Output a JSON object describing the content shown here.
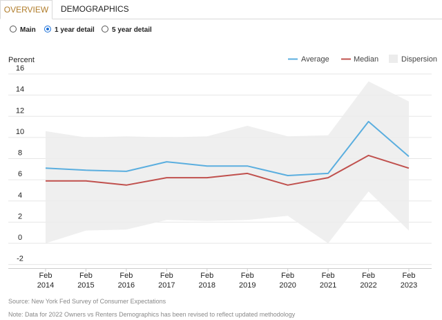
{
  "tabs": [
    {
      "label": "OVERVIEW"
    },
    {
      "label": "DEMOGRAPHICS"
    }
  ],
  "options": [
    {
      "label": "Main",
      "selected": false
    },
    {
      "label": "1 year detail",
      "selected": true
    },
    {
      "label": "5 year detail",
      "selected": false
    }
  ],
  "colors": {
    "average": "#5aaedf",
    "median": "#c0504d",
    "dispersion": "#ececec",
    "active_tab": "#b07c2a"
  },
  "footer": {
    "source": "Source: New York Fed Survey of Consumer Expectations",
    "note": "Note: Data for 2022 Owners vs Renters Demographics has been revised to reflect updated methodology"
  },
  "chart_data": {
    "type": "line",
    "ylabel": "Percent",
    "ylim": [
      -2,
      16
    ],
    "yticks": [
      "16",
      "14",
      "12",
      "10",
      "8",
      "6",
      "4",
      "2",
      "0",
      "-2"
    ],
    "ytick_values": [
      16,
      14,
      12,
      10,
      8,
      6,
      4,
      2,
      0,
      -2
    ],
    "categories": [
      [
        "Feb",
        "2014"
      ],
      [
        "Feb",
        "2015"
      ],
      [
        "Feb",
        "2016"
      ],
      [
        "Feb",
        "2017"
      ],
      [
        "Feb",
        "2018"
      ],
      [
        "Feb",
        "2019"
      ],
      [
        "Feb",
        "2020"
      ],
      [
        "Feb",
        "2021"
      ],
      [
        "Feb",
        "2022"
      ],
      [
        "Feb",
        "2023"
      ]
    ],
    "legend_position": "top-right",
    "grid": true,
    "series": [
      {
        "name": "Average",
        "key": "average",
        "values": [
          7.1,
          6.9,
          6.8,
          7.7,
          7.3,
          7.3,
          6.4,
          6.6,
          11.5,
          8.2
        ]
      },
      {
        "name": "Median",
        "key": "median",
        "values": [
          5.9,
          5.9,
          5.5,
          6.2,
          6.2,
          6.6,
          5.5,
          6.2,
          8.3,
          7.1
        ]
      },
      {
        "name": "Dispersion",
        "key": "dispersion",
        "lower": [
          0.0,
          1.2,
          1.3,
          2.2,
          2.1,
          2.2,
          2.6,
          0.0,
          4.9,
          1.2
        ],
        "upper": [
          10.6,
          10.0,
          10.1,
          10.0,
          10.1,
          11.1,
          10.1,
          10.2,
          15.3,
          13.4
        ]
      }
    ]
  }
}
